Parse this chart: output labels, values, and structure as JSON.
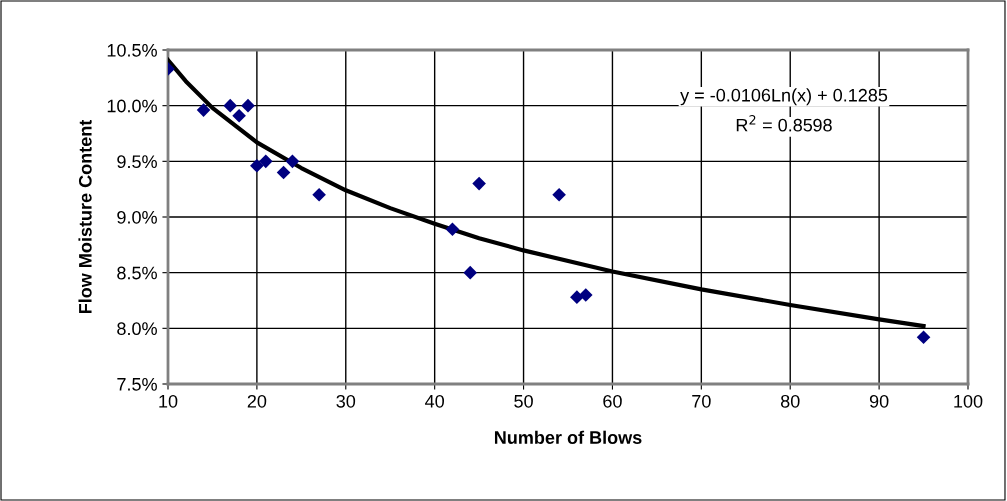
{
  "chart_data": {
    "type": "scatter",
    "xlabel": "Number of Blows",
    "ylabel": "Flow Moisture Content",
    "series": [
      {
        "color": "#000080",
        "marker": "diamond",
        "x": [
          10,
          14,
          17,
          18,
          19,
          20,
          21,
          23,
          24,
          27,
          42,
          45,
          44,
          54,
          56,
          57,
          95
        ],
        "values": [
          10.33,
          9.96,
          10.0,
          9.91,
          10.0,
          9.46,
          9.5,
          9.4,
          9.5,
          9.2,
          8.89,
          9.3,
          8.5,
          9.2,
          8.28,
          8.3,
          7.92
        ]
      },
      {
        "type": "line",
        "color": "#000000",
        "marker": "none",
        "line_style": "solid",
        "x": [
          10,
          12,
          15,
          20,
          25,
          30,
          35,
          40,
          45,
          50,
          60,
          70,
          80,
          90,
          95
        ],
        "values": [
          10.41,
          10.22,
          9.98,
          9.67,
          9.44,
          9.24,
          9.08,
          8.94,
          8.81,
          8.7,
          8.51,
          8.35,
          8.21,
          8.08,
          8.02
        ]
      }
    ],
    "annotations": [
      "y = -0.0106Ln(x) + 0.1285",
      "R$^{2}$ = 0.8598"
    ],
    "xlim": [
      10,
      100
    ],
    "xticks": [
      10,
      20,
      30,
      40,
      50,
      60,
      70,
      80,
      90,
      100
    ],
    "ylim": [
      7.5,
      10.5
    ],
    "yticks": [
      {
        "value": 7.5,
        "label": "7.5%"
      },
      {
        "value": 8.0,
        "label": "8.0%"
      },
      {
        "value": 8.5,
        "label": "8.5%"
      },
      {
        "value": 9.0,
        "label": "9.0%"
      },
      {
        "value": 9.5,
        "label": "9.5%"
      },
      {
        "value": 10.0,
        "label": "10.0%"
      },
      {
        "value": 10.5,
        "label": "10.5%"
      }
    ],
    "grid": true,
    "legend": false
  }
}
